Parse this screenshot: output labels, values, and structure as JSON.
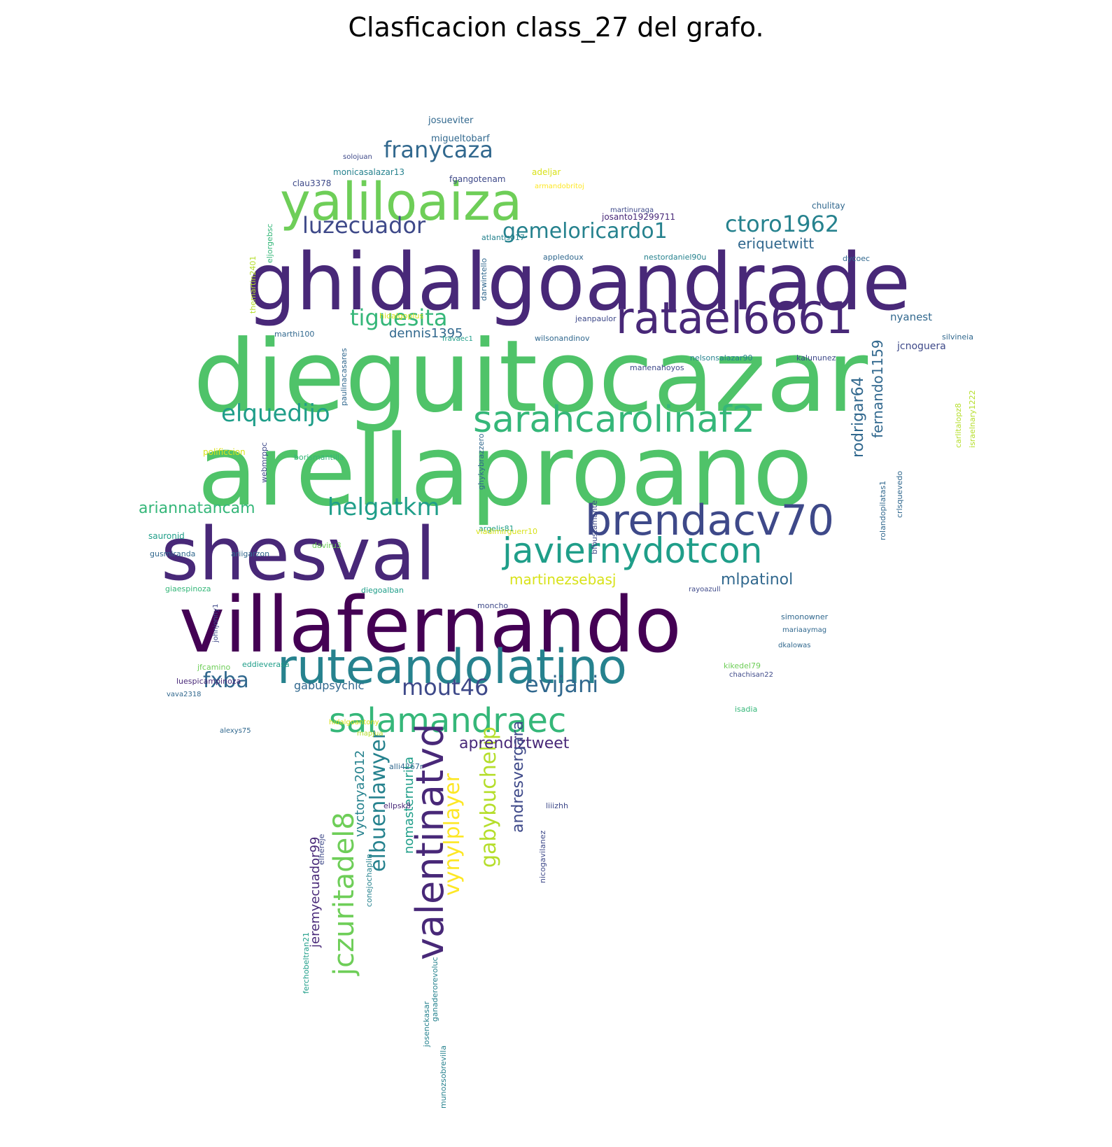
{
  "title": "Clasficacion class_27 del grafo.",
  "colors": {
    "c1": "#440154",
    "c2": "#482878",
    "c3": "#3e4989",
    "c4": "#31688e",
    "c5": "#26828e",
    "c6": "#1f9e89",
    "c7": "#35b779",
    "c8": "#6ece58",
    "c9": "#b5de2b",
    "c10": "#d8e219",
    "c11": "#fde725",
    "c12": "#4fc369"
  },
  "words": [
    {
      "text": "dieguitocazar",
      "color": "c12"
    },
    {
      "text": "arellaproano",
      "color": "c12"
    },
    {
      "text": "ghidalgoandrade",
      "color": "c2"
    },
    {
      "text": "villafernando",
      "color": "c1"
    },
    {
      "text": "shesval",
      "color": "c2"
    },
    {
      "text": "yaliloaiza",
      "color": "c8"
    },
    {
      "text": "ruteandolatino",
      "color": "c5"
    },
    {
      "text": "ratael6661",
      "color": "c2"
    },
    {
      "text": "brendacv70",
      "color": "c3"
    },
    {
      "text": "sarahcarolinaf2",
      "color": "c7"
    },
    {
      "text": "javiernydotcon",
      "color": "c6"
    },
    {
      "text": "salamandraec",
      "color": "c7"
    },
    {
      "text": "valentinatvd",
      "color": "c2"
    },
    {
      "text": "jczuritadel8",
      "color": "c8"
    },
    {
      "text": "franycaza",
      "color": "c4"
    },
    {
      "text": "gemeloricardo1",
      "color": "c5"
    },
    {
      "text": "ctoro1962",
      "color": "c5"
    },
    {
      "text": "luzecuador",
      "color": "c3"
    },
    {
      "text": "tiguesita",
      "color": "c7"
    },
    {
      "text": "elquedijo",
      "color": "c6"
    },
    {
      "text": "helgatkm",
      "color": "c6"
    },
    {
      "text": "mout46",
      "color": "c3"
    },
    {
      "text": "evijani",
      "color": "c4"
    },
    {
      "text": "fxba",
      "color": "c4"
    },
    {
      "text": "elbuenlawyer",
      "color": "c5"
    },
    {
      "text": "vynylplayer",
      "color": "c11"
    },
    {
      "text": "gabybuchelip",
      "color": "c9"
    },
    {
      "text": "aprendiztweet",
      "color": "c2"
    },
    {
      "text": "martinezsebasj",
      "color": "c10"
    },
    {
      "text": "mlpatinol",
      "color": "c4"
    },
    {
      "text": "eriquetwitt",
      "color": "c4"
    },
    {
      "text": "ariannatancam",
      "color": "c7"
    },
    {
      "text": "dennis1395",
      "color": "c4"
    },
    {
      "text": "rodrigar64",
      "color": "c4"
    },
    {
      "text": "fernando1159",
      "color": "c4"
    },
    {
      "text": "andresvergara",
      "color": "c3"
    },
    {
      "text": "nomasternurita",
      "color": "c6"
    },
    {
      "text": "vyctorya2012",
      "color": "c5"
    },
    {
      "text": "jeremyecuador99",
      "color": "c2"
    },
    {
      "text": "gabupsychic",
      "color": "c4"
    },
    {
      "text": "nyanest",
      "color": "c4"
    },
    {
      "text": "jcnoguera",
      "color": "c3"
    },
    {
      "text": "josueviter",
      "color": "c4"
    },
    {
      "text": "migueltobarf",
      "color": "c4"
    },
    {
      "text": "monicasalazar13",
      "color": "c5"
    },
    {
      "text": "fgangotenam",
      "color": "c3"
    },
    {
      "text": "adeljar",
      "color": "c10"
    },
    {
      "text": "clau3378",
      "color": "c3"
    },
    {
      "text": "josanto19299711",
      "color": "c2"
    },
    {
      "text": "chulitay",
      "color": "c4"
    },
    {
      "text": "nestordaniel90u",
      "color": "c5"
    },
    {
      "text": "appledoux",
      "color": "c4"
    },
    {
      "text": "dycoec",
      "color": "c4"
    },
    {
      "text": "jeanpaulor",
      "color": "c3"
    },
    {
      "text": "wilsonandinov",
      "color": "c4"
    },
    {
      "text": "nelsonsalazar90",
      "color": "c5"
    },
    {
      "text": "kalununez",
      "color": "c3"
    },
    {
      "text": "hidalgoplus",
      "color": "c10"
    },
    {
      "text": "marthi100",
      "color": "c4"
    },
    {
      "text": "paulinacasares",
      "color": "c4"
    },
    {
      "text": "polificcion",
      "color": "c10"
    },
    {
      "text": "borismantilla",
      "color": "c7"
    },
    {
      "text": "sauronid",
      "color": "c6"
    },
    {
      "text": "gusmiranda",
      "color": "c4"
    },
    {
      "text": "ariigarzon",
      "color": "c4"
    },
    {
      "text": "daviru3",
      "color": "c8"
    },
    {
      "text": "argelis81",
      "color": "c6"
    },
    {
      "text": "bfbustamante",
      "color": "c3"
    },
    {
      "text": "crlsquevedo",
      "color": "c4"
    },
    {
      "text": "rolandopilatas1",
      "color": "c4"
    },
    {
      "text": "giaespinoza",
      "color": "c7"
    },
    {
      "text": "diegoalban",
      "color": "c6"
    },
    {
      "text": "moncho",
      "color": "c3"
    },
    {
      "text": "simonowner",
      "color": "c4"
    },
    {
      "text": "jfcamino",
      "color": "c8"
    },
    {
      "text": "eddieverasa",
      "color": "c6"
    },
    {
      "text": "luespicampinoza",
      "color": "c2"
    },
    {
      "text": "kikedel79",
      "color": "c8"
    },
    {
      "text": "isadia",
      "color": "c7"
    },
    {
      "text": "elhereje",
      "color": "c3"
    },
    {
      "text": "liiizhh",
      "color": "c3"
    },
    {
      "text": "ellpsk8",
      "color": "c2"
    },
    {
      "text": "alli4267r",
      "color": "c4"
    },
    {
      "text": "conejochaplin",
      "color": "c5"
    },
    {
      "text": "josenckasar",
      "color": "c5"
    },
    {
      "text": "carlitalopz8",
      "color": "c9"
    },
    {
      "text": "israelnary1222",
      "color": "c9"
    },
    {
      "text": "silvineia",
      "color": "c4"
    },
    {
      "text": "atlantis017",
      "color": "c5"
    },
    {
      "text": "martinuraga",
      "color": "c3"
    },
    {
      "text": "darwintello",
      "color": "c4"
    },
    {
      "text": "themartin2401",
      "color": "c9"
    },
    {
      "text": "eljorgebsc",
      "color": "c7"
    },
    {
      "text": "manenahoyos",
      "color": "c3"
    },
    {
      "text": "webmrppc",
      "color": "c3"
    },
    {
      "text": "solojuan",
      "color": "c3"
    },
    {
      "text": "armandobritoj",
      "color": "c11"
    },
    {
      "text": "ghykybrazzero",
      "color": "c4"
    },
    {
      "text": "vladimirguerr10",
      "color": "c10"
    },
    {
      "text": "rayoazull",
      "color": "c3"
    },
    {
      "text": "mariaaymag",
      "color": "c4"
    },
    {
      "text": "dkalowas",
      "color": "c4"
    },
    {
      "text": "chachisan22",
      "color": "c3"
    },
    {
      "text": "mapjua",
      "color": "c9"
    },
    {
      "text": "hidalgoantony",
      "color": "c10"
    },
    {
      "text": "alexys75",
      "color": "c4"
    },
    {
      "text": "vava2318",
      "color": "c4"
    },
    {
      "text": "ferchobeltran21",
      "color": "c6"
    },
    {
      "text": "ganaderorevoluc",
      "color": "c5"
    },
    {
      "text": "munozsobrevilla",
      "color": "c5"
    },
    {
      "text": "nicogavilanez",
      "color": "c3"
    },
    {
      "text": "fravaec1",
      "color": "c6"
    },
    {
      "text": "johnjonny1",
      "color": "c3"
    }
  ]
}
